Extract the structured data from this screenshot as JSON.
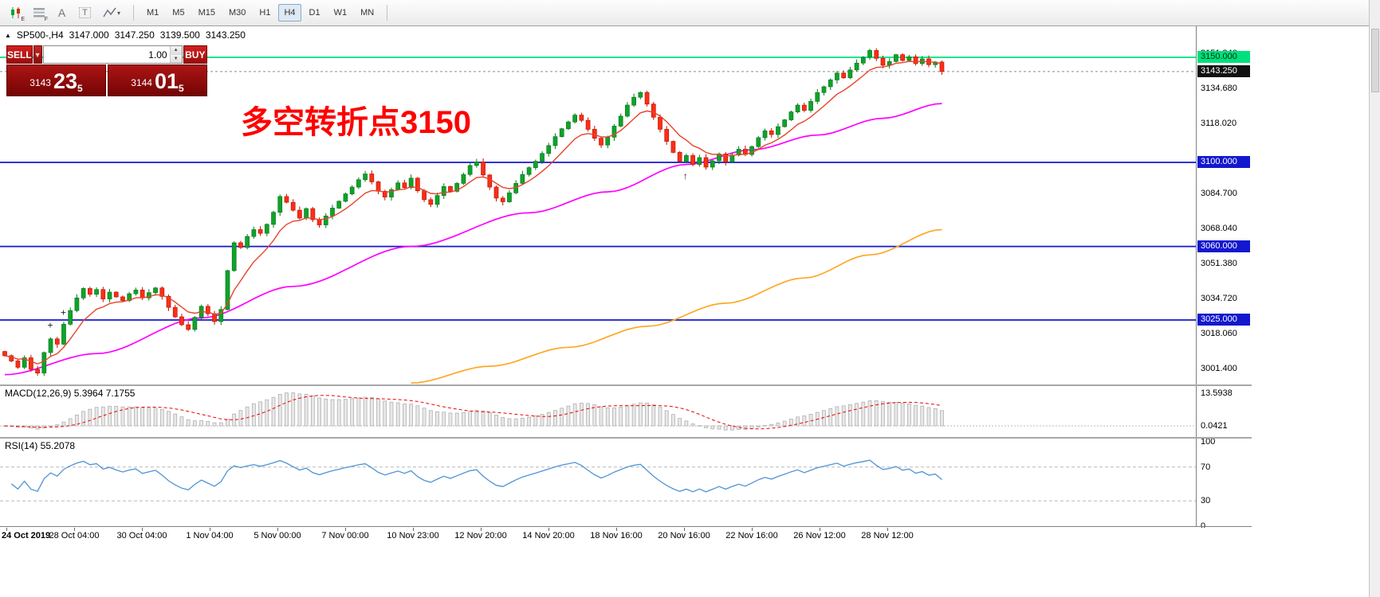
{
  "toolbar": {
    "tools": [
      {
        "name": "candlestick-chart",
        "sub": "E"
      },
      {
        "name": "indicator-list",
        "sub": "F"
      },
      {
        "name": "text-annotation",
        "label": "A"
      },
      {
        "name": "text-label",
        "label": "T"
      },
      {
        "name": "line-studies",
        "dropdown": "▾"
      }
    ],
    "timeframes": [
      "M1",
      "M5",
      "M15",
      "M30",
      "H1",
      "H4",
      "D1",
      "W1",
      "MN"
    ],
    "active_timeframe": "H4"
  },
  "header": {
    "collapse_marker": "▲",
    "symbol_period": "SP500-,H4",
    "open": "3147.000",
    "high": "3147.250",
    "low": "3139.500",
    "close": "3143.250"
  },
  "trade_panel": {
    "sell": "SELL",
    "buy": "BUY",
    "dropdown_glyph": "▼",
    "volume": "1.00",
    "spin_up": "▲",
    "spin_down": "▼",
    "bid_prefix": "3143",
    "bid_big": "23",
    "bid_sup": "5",
    "ask_prefix": "3144",
    "ask_big": "01",
    "ask_sup": "5"
  },
  "annotation": {
    "text": "多空转折点3150",
    "color": "#ff0000"
  },
  "colors": {
    "up_fill": "#0fa32b",
    "up_stroke": "#067a1a",
    "down_fill": "#fe2e17",
    "down_stroke": "#bd1502",
    "ma_fast": "#e8432a",
    "ma_mid": "#ff00ff",
    "ma_slow": "#ffa726",
    "hline_green": "#00e07c",
    "hline_blue": "#1318cf",
    "bid_line": "#8c8c8c",
    "macd_bar_fill": "#e8e8e8",
    "macd_bar_stroke": "#b0b0b0",
    "macd_signal": "#f00000",
    "rsi_line": "#4f94d4",
    "level_dash": "#b8b8b8"
  },
  "chart_data": {
    "type": "candlestick",
    "symbol": "SP500-",
    "period": "H4",
    "first_open": 3010,
    "closes": [
      3008,
      3005.5,
      3002.5,
      3007,
      3001.5,
      2999.75,
      3009.5,
      3016,
      3013.5,
      3023,
      3029.5,
      3035.5,
      3040,
      3037.25,
      3039.5,
      3035,
      3038.25,
      3036,
      3034.25,
      3037.5,
      3039.25,
      3035.5,
      3038,
      3040.25,
      3036.25,
      3031,
      3026.5,
      3022.75,
      3020.5,
      3026.25,
      3031.5,
      3028,
      3024.25,
      3030,
      3048.5,
      3061.75,
      3059.5,
      3064.75,
      3068,
      3066.25,
      3070.5,
      3076.25,
      3083.75,
      3081,
      3077.25,
      3073.5,
      3078,
      3072.75,
      3070.25,
      3074.5,
      3078.25,
      3081.5,
      3085,
      3088.25,
      3091.75,
      3094.5,
      3090.75,
      3086.25,
      3083.5,
      3087,
      3090.25,
      3088,
      3092.5,
      3086.5,
      3082.25,
      3080,
      3084.25,
      3088.5,
      3086.25,
      3090,
      3094.25,
      3098.5,
      3100.25,
      3094,
      3088.25,
      3083,
      3081.25,
      3085.5,
      3090,
      3094.25,
      3097.5,
      3100.5,
      3104.25,
      3108,
      3112.25,
      3116,
      3119.25,
      3122.5,
      3120,
      3115.75,
      3111.5,
      3108.25,
      3112,
      3117.25,
      3122,
      3127.25,
      3131,
      3133.25,
      3127.75,
      3121.5,
      3115.75,
      3110,
      3104.75,
      3100.5,
      3103.25,
      3099,
      3102.25,
      3097.75,
      3100.75,
      3104,
      3100.25,
      3103.5,
      3106.25,
      3103.75,
      3107.5,
      3111.75,
      3115,
      3113.25,
      3117,
      3120.25,
      3124,
      3127.25,
      3124.75,
      3129,
      3133.25,
      3136,
      3139.25,
      3142.5,
      3140.25,
      3144,
      3147.25,
      3150,
      3153.25,
      3149.5,
      3146.25,
      3148,
      3151.25,
      3148.5,
      3150.25,
      3147,
      3149.25,
      3146.5,
      3147.75,
      3143.25
    ],
    "hlines": [
      {
        "price": 3150.0,
        "color_key": "hline_green"
      },
      {
        "price": 3100.0,
        "color_key": "hline_blue"
      },
      {
        "price": 3060.0,
        "color_key": "hline_blue"
      },
      {
        "price": 3025.0,
        "color_key": "hline_blue"
      }
    ],
    "bid_price": 3143.25,
    "overlays": {
      "ma_fast": {
        "type": "ema",
        "period": 8
      },
      "ma_mid": {
        "points": [
          [
            0,
            2999
          ],
          [
            14,
            3009
          ],
          [
            30,
            3026
          ],
          [
            44,
            3041
          ],
          [
            62,
            3060
          ],
          [
            80,
            3076
          ],
          [
            92,
            3086
          ],
          [
            104,
            3099
          ],
          [
            114,
            3106
          ],
          [
            124,
            3113
          ],
          [
            134,
            3121
          ],
          [
            143,
            3128
          ]
        ]
      },
      "ma_slow": {
        "points": [
          [
            62,
            2995
          ],
          [
            74,
            3003
          ],
          [
            86,
            3012
          ],
          [
            98,
            3022
          ],
          [
            110,
            3033
          ],
          [
            122,
            3045
          ],
          [
            132,
            3056
          ],
          [
            143,
            3068
          ]
        ]
      }
    },
    "objects": [
      {
        "glyph": "+",
        "index": 7,
        "price": 3021
      },
      {
        "glyph": "+",
        "index": 9,
        "price": 3027
      },
      {
        "glyph": "↑",
        "index": 104,
        "price": 3092
      }
    ]
  },
  "price_axis": {
    "ticks": [
      {
        "text": "3151.340",
        "value": 3151.34
      },
      {
        "text": "3134.680",
        "value": 3134.68
      },
      {
        "text": "3118.020",
        "value": 3118.02
      },
      {
        "text": "3084.700",
        "value": 3084.7
      },
      {
        "text": "3068.040",
        "value": 3068.04
      },
      {
        "text": "3051.380",
        "value": 3051.38
      },
      {
        "text": "3034.720",
        "value": 3034.72
      },
      {
        "text": "3018.060",
        "value": 3018.06
      },
      {
        "text": "3001.400",
        "value": 3001.4
      }
    ],
    "badges": [
      {
        "text": "3150.000",
        "value": 3150.0,
        "bg": "#00e07c",
        "fg": "#00320f"
      },
      {
        "text": "3143.250",
        "value": 3143.25,
        "bg": "#111111",
        "fg": "#ffffff"
      },
      {
        "text": "3100.000",
        "value": 3100.0,
        "bg": "#1318cf",
        "fg": "#ffffff"
      },
      {
        "text": "3060.000",
        "value": 3060.0,
        "bg": "#1318cf",
        "fg": "#ffffff"
      },
      {
        "text": "3025.000",
        "value": 3025.0,
        "bg": "#1318cf",
        "fg": "#ffffff"
      }
    ]
  },
  "macd_panel": {
    "label": "MACD(12,26,9) 5.3964 7.1755",
    "fast": 12,
    "slow": 26,
    "signal": 9,
    "axis_labels": [
      {
        "text": "13.5938",
        "value": 13.5938
      },
      {
        "text": "0.0421",
        "value": 0.0421
      }
    ]
  },
  "rsi_panel": {
    "label": "RSI(14) 55.2078",
    "period": 14,
    "current": 55.2078,
    "levels": [
      {
        "text": "100",
        "value": 100
      },
      {
        "text": "70",
        "value": 70
      },
      {
        "text": "30",
        "value": 30
      },
      {
        "text": "0",
        "value": 0
      }
    ],
    "dashed_levels": [
      70,
      30
    ]
  },
  "time_axis": {
    "labels": [
      "24 Oct 2019",
      "28 Oct 04:00",
      "30 Oct 04:00",
      "1 Nov 04:00",
      "5 Nov 00:00",
      "7 Nov 00:00",
      "10 Nov 23:00",
      "12 Nov 20:00",
      "14 Nov 20:00",
      "18 Nov 16:00",
      "20 Nov 16:00",
      "22 Nov 16:00",
      "26 Nov 12:00",
      "28 Nov 12:00"
    ]
  }
}
